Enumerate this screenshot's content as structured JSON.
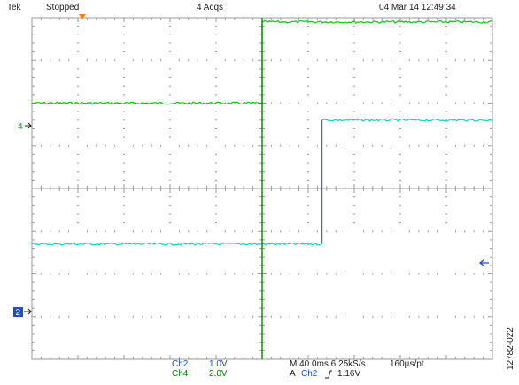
{
  "header": {
    "brand": "Tek",
    "run_state": "Stopped",
    "acquisitions": "4 Acqs",
    "datetime": "04 Mar 14 12:49:34"
  },
  "markers": {
    "ch4": "4",
    "ch2": "2"
  },
  "readouts": {
    "ch2_name": "Ch2",
    "ch2_scale": "1.0V",
    "ch4_name": "Ch4",
    "ch4_scale": "2.0V",
    "timebase": "M 40.0ms 6.25kS/s",
    "record": "160µs/pt",
    "trigger_prefix": "A",
    "trigger_source": "Ch2",
    "trigger_slope_icon": "rising-edge-icon",
    "trigger_level": "1.16V"
  },
  "figure_id": "12782-022",
  "colors": {
    "ch2": "#00d6d6",
    "ch4": "#00cc00",
    "grid": "#9a9a9a",
    "ch2_marker": "#1b4fc4",
    "trigger_marker": "#ff8000"
  },
  "chart_data": {
    "type": "line",
    "divisions": {
      "x": 10,
      "y": 8
    },
    "series": [
      {
        "name": "Ch4",
        "volts_per_div": 2.0,
        "edges_div": [
          0.0,
          6.05
        ],
        "levels_div": [
          2.0,
          3.9
        ]
      },
      {
        "name": "Ch2",
        "volts_per_div": 1.0,
        "edges_div": [
          1.3
        ],
        "levels_div": [
          -1.3,
          1.6
        ]
      }
    ]
  }
}
